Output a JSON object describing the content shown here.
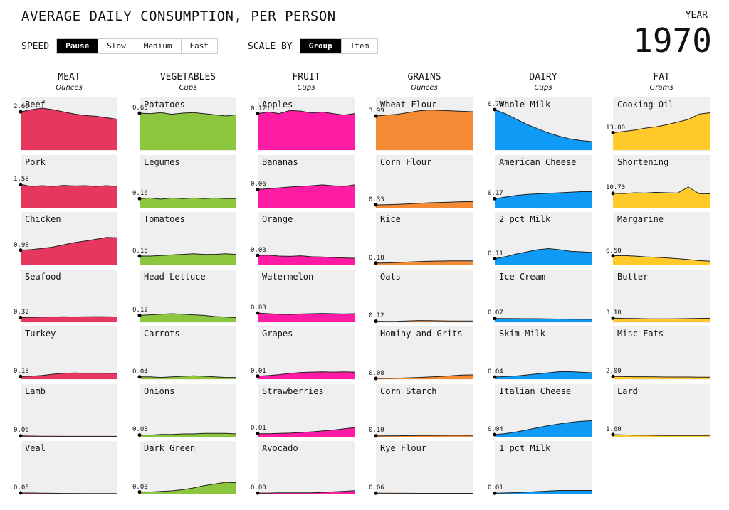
{
  "title": "AVERAGE DAILY CONSUMPTION, PER PERSON",
  "controls": {
    "speed_label": "SPEED",
    "speed_options": [
      "Pause",
      "Slow",
      "Medium",
      "Fast"
    ],
    "speed_selected": "Pause",
    "scale_label": "SCALE BY",
    "scale_options": [
      "Group",
      "Item"
    ],
    "scale_selected": "Group"
  },
  "year_label": "YEAR",
  "year_value": "1970",
  "chart_data": {
    "type": "area",
    "groups": [
      {
        "name": "MEAT",
        "unit": "Ounces",
        "color": "#e8375f",
        "max": 2.9,
        "items": [
          {
            "name": "Beef",
            "value_label": "2.60",
            "trend": [
              2.6,
              2.75,
              2.85,
              2.75,
              2.6,
              2.45,
              2.35,
              2.3,
              2.2,
              2.1
            ]
          },
          {
            "name": "Pork",
            "value_label": "1.58",
            "trend": [
              1.58,
              1.45,
              1.5,
              1.45,
              1.52,
              1.48,
              1.5,
              1.45,
              1.5,
              1.45
            ]
          },
          {
            "name": "Chicken",
            "value_label": "0.98",
            "trend": [
              0.98,
              1.02,
              1.1,
              1.2,
              1.35,
              1.5,
              1.6,
              1.72,
              1.85,
              1.82
            ]
          },
          {
            "name": "Seafood",
            "value_label": "0.32",
            "trend": [
              0.32,
              0.33,
              0.35,
              0.36,
              0.37,
              0.36,
              0.37,
              0.38,
              0.37,
              0.36
            ]
          },
          {
            "name": "Turkey",
            "value_label": "0.18",
            "trend": [
              0.18,
              0.2,
              0.25,
              0.34,
              0.4,
              0.42,
              0.4,
              0.41,
              0.4,
              0.39
            ]
          },
          {
            "name": "Lamb",
            "value_label": "0.06",
            "trend": [
              0.06,
              0.05,
              0.04,
              0.04,
              0.03,
              0.03,
              0.03,
              0.03,
              0.03,
              0.03
            ]
          },
          {
            "name": "Veal",
            "value_label": "0.05",
            "trend": [
              0.05,
              0.05,
              0.04,
              0.03,
              0.02,
              0.02,
              0.01,
              0.01,
              0.01,
              0.01
            ]
          }
        ]
      },
      {
        "name": "VEGETABLES",
        "unit": "Cups",
        "color": "#8cc63f",
        "max": 0.75,
        "items": [
          {
            "name": "Potatoes",
            "value_label": "0.65",
            "trend": [
              0.65,
              0.64,
              0.66,
              0.63,
              0.65,
              0.66,
              0.64,
              0.62,
              0.6,
              0.62
            ]
          },
          {
            "name": "Legumes",
            "value_label": "0.16",
            "trend": [
              0.16,
              0.17,
              0.15,
              0.17,
              0.16,
              0.17,
              0.16,
              0.17,
              0.16,
              0.16
            ]
          },
          {
            "name": "Tomatoes",
            "value_label": "0.15",
            "trend": [
              0.15,
              0.15,
              0.16,
              0.17,
              0.18,
              0.19,
              0.18,
              0.18,
              0.19,
              0.18
            ]
          },
          {
            "name": "Head Lettuce",
            "value_label": "0.12",
            "trend": [
              0.12,
              0.13,
              0.14,
              0.15,
              0.14,
              0.13,
              0.12,
              0.1,
              0.09,
              0.08
            ]
          },
          {
            "name": "Carrots",
            "value_label": "0.04",
            "trend": [
              0.04,
              0.04,
              0.03,
              0.04,
              0.05,
              0.06,
              0.05,
              0.04,
              0.03,
              0.03
            ]
          },
          {
            "name": "Onions",
            "value_label": "0.03",
            "trend": [
              0.03,
              0.03,
              0.04,
              0.04,
              0.05,
              0.05,
              0.06,
              0.06,
              0.06,
              0.05
            ]
          },
          {
            "name": "Dark Green",
            "value_label": "0.03",
            "trend": [
              0.03,
              0.03,
              0.04,
              0.05,
              0.07,
              0.1,
              0.14,
              0.17,
              0.2,
              0.19
            ]
          }
        ]
      },
      {
        "name": "FRUIT",
        "unit": "Cups",
        "color": "#ff1ba3",
        "max": 0.14,
        "items": [
          {
            "name": "Apples",
            "value_label": "0.12",
            "trend": [
              0.12,
              0.125,
              0.12,
              0.13,
              0.128,
              0.122,
              0.125,
              0.12,
              0.115,
              0.12
            ]
          },
          {
            "name": "Bananas",
            "value_label": "0.06",
            "trend": [
              0.06,
              0.062,
              0.065,
              0.068,
              0.07,
              0.072,
              0.075,
              0.072,
              0.07,
              0.075
            ]
          },
          {
            "name": "Orange",
            "value_label": "0.03",
            "trend": [
              0.03,
              0.031,
              0.028,
              0.027,
              0.029,
              0.026,
              0.025,
              0.023,
              0.022,
              0.021
            ]
          },
          {
            "name": "Watermelon",
            "value_label": "0.03",
            "trend": [
              0.03,
              0.028,
              0.026,
              0.025,
              0.027,
              0.028,
              0.029,
              0.028,
              0.027,
              0.028
            ]
          },
          {
            "name": "Grapes",
            "value_label": "0.01",
            "trend": [
              0.01,
              0.012,
              0.015,
              0.019,
              0.022,
              0.023,
              0.024,
              0.023,
              0.024,
              0.023
            ]
          },
          {
            "name": "Strawberries",
            "value_label": "0.01",
            "trend": [
              0.01,
              0.01,
              0.011,
              0.012,
              0.014,
              0.016,
              0.019,
              0.022,
              0.026,
              0.03
            ]
          },
          {
            "name": "Avocado",
            "value_label": "0.00",
            "trend": [
              0.002,
              0.002,
              0.003,
              0.003,
              0.003,
              0.003,
              0.004,
              0.006,
              0.008,
              0.01
            ]
          }
        ]
      },
      {
        "name": "GRAINS",
        "unit": "Ounces",
        "color": "#f58a35",
        "max": 5.0,
        "items": [
          {
            "name": "Wheat Flour",
            "value_label": "3.99",
            "trend": [
              3.99,
              4.1,
              4.2,
              4.4,
              4.6,
              4.7,
              4.65,
              4.6,
              4.55,
              4.5
            ]
          },
          {
            "name": "Corn Flour",
            "value_label": "0.33",
            "trend": [
              0.33,
              0.36,
              0.4,
              0.45,
              0.52,
              0.58,
              0.62,
              0.66,
              0.7,
              0.72
            ]
          },
          {
            "name": "Rice",
            "value_label": "0.18",
            "trend": [
              0.18,
              0.2,
              0.24,
              0.3,
              0.36,
              0.4,
              0.42,
              0.43,
              0.44,
              0.43
            ]
          },
          {
            "name": "Oats",
            "value_label": "0.12",
            "trend": [
              0.12,
              0.11,
              0.12,
              0.16,
              0.2,
              0.19,
              0.17,
              0.15,
              0.14,
              0.14
            ]
          },
          {
            "name": "Hominy and Grits",
            "value_label": "0.08",
            "trend": [
              0.08,
              0.09,
              0.12,
              0.16,
              0.2,
              0.26,
              0.32,
              0.4,
              0.48,
              0.5
            ]
          },
          {
            "name": "Corn Starch",
            "value_label": "0.10",
            "trend": [
              0.1,
              0.11,
              0.12,
              0.13,
              0.14,
              0.15,
              0.16,
              0.17,
              0.17,
              0.16
            ]
          },
          {
            "name": "Rye Flour",
            "value_label": "0.06",
            "trend": [
              0.06,
              0.055,
              0.05,
              0.05,
              0.045,
              0.045,
              0.04,
              0.04,
              0.04,
              0.04
            ]
          }
        ]
      },
      {
        "name": "DAIRY",
        "unit": "Cups",
        "color": "#0e9af5",
        "max": 0.8,
        "items": [
          {
            "name": "Whole Milk",
            "value_label": "0.76",
            "trend": [
              0.76,
              0.68,
              0.58,
              0.48,
              0.4,
              0.32,
              0.26,
              0.21,
              0.18,
              0.16
            ]
          },
          {
            "name": "American Cheese",
            "value_label": "0.17",
            "trend": [
              0.17,
              0.2,
              0.23,
              0.25,
              0.26,
              0.27,
              0.28,
              0.29,
              0.3,
              0.3
            ]
          },
          {
            "name": "2 pct Milk",
            "value_label": "0.11",
            "trend": [
              0.11,
              0.15,
              0.2,
              0.24,
              0.28,
              0.3,
              0.28,
              0.25,
              0.24,
              0.23
            ]
          },
          {
            "name": "Ice Cream",
            "value_label": "0.07",
            "trend": [
              0.07,
              0.07,
              0.068,
              0.066,
              0.066,
              0.064,
              0.06,
              0.058,
              0.055,
              0.055
            ]
          },
          {
            "name": "Skim Milk",
            "value_label": "0.04",
            "trend": [
              0.04,
              0.05,
              0.06,
              0.08,
              0.1,
              0.12,
              0.14,
              0.14,
              0.13,
              0.12
            ]
          },
          {
            "name": "Italian Cheese",
            "value_label": "0.04",
            "trend": [
              0.04,
              0.06,
              0.09,
              0.13,
              0.17,
              0.21,
              0.24,
              0.27,
              0.29,
              0.3
            ]
          },
          {
            "name": "1 pct Milk",
            "value_label": "0.01",
            "trend": [
              0.01,
              0.015,
              0.02,
              0.03,
              0.04,
              0.05,
              0.06,
              0.06,
              0.06,
              0.06
            ]
          }
        ]
      },
      {
        "name": "FAT",
        "unit": "Grams",
        "color": "#ffca2a",
        "max": 32.0,
        "items": [
          {
            "name": "Cooking Oil",
            "value_label": "13.00",
            "trend": [
              13,
              14,
              15,
              16.5,
              17.5,
              19,
              21,
              23,
              27,
              28
            ]
          },
          {
            "name": "Shortening",
            "value_label": "10.70",
            "trend": [
              10.7,
              10.5,
              11.2,
              11.0,
              11.5,
              11.2,
              11.0,
              15.5,
              10.5,
              10.4
            ]
          },
          {
            "name": "Margarine",
            "value_label": "6.50",
            "trend": [
              6.5,
              6.8,
              6.4,
              5.8,
              5.5,
              5.0,
              4.5,
              3.8,
              3.0,
              2.6
            ]
          },
          {
            "name": "Butter",
            "value_label": "3.10",
            "trend": [
              3.1,
              2.9,
              2.8,
              2.6,
              2.5,
              2.5,
              2.6,
              2.7,
              2.9,
              3.0
            ]
          },
          {
            "name": "Misc Fats",
            "value_label": "2.00",
            "trend": [
              2.0,
              1.9,
              1.8,
              1.8,
              1.7,
              1.6,
              1.6,
              1.6,
              1.5,
              1.5
            ]
          },
          {
            "name": "Lard",
            "value_label": "1.60",
            "trend": [
              1.6,
              1.4,
              1.2,
              1.1,
              1.0,
              0.9,
              0.9,
              0.9,
              0.9,
              0.9
            ]
          }
        ]
      }
    ]
  }
}
